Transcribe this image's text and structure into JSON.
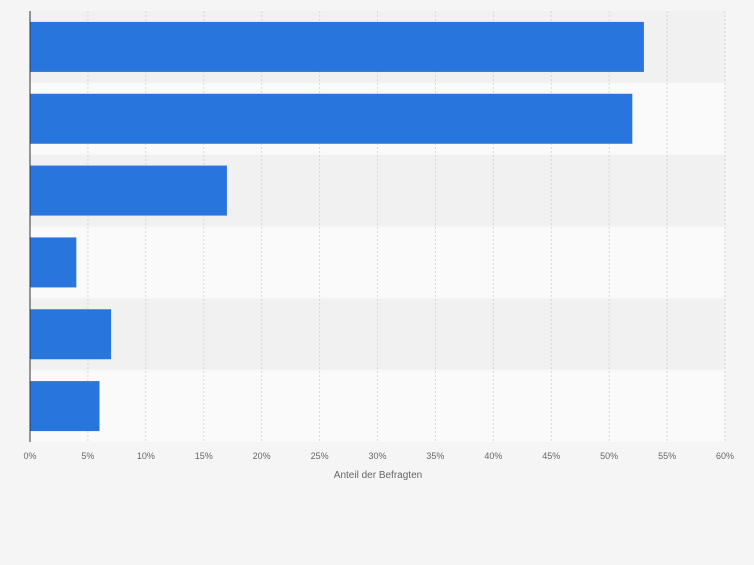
{
  "chart_data": {
    "type": "bar",
    "orientation": "horizontal",
    "categories": [
      "",
      "",
      "",
      "",
      "",
      ""
    ],
    "values": [
      53,
      52,
      17,
      4,
      7,
      6
    ],
    "title": "",
    "xlabel": "Anteil der Befragten",
    "ylabel": "",
    "xlim": [
      0,
      60
    ],
    "xticks": [
      "0%",
      "5%",
      "10%",
      "15%",
      "20%",
      "25%",
      "30%",
      "35%",
      "40%",
      "45%",
      "50%",
      "55%",
      "60%"
    ],
    "grid": true,
    "legend": "none",
    "colors": {
      "bar": "#2876dd",
      "band_dark": "#f1f1f2",
      "band_light": "#fafafa",
      "grid": "#d8d8d8",
      "axis": "#333333",
      "text": "#666666"
    }
  }
}
